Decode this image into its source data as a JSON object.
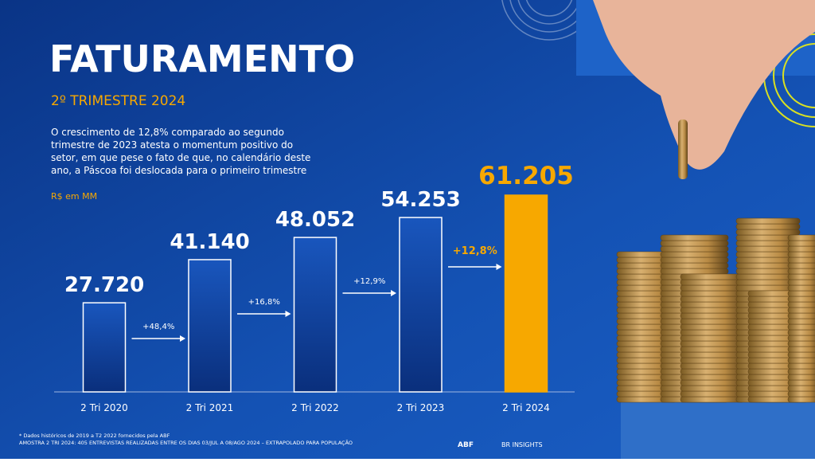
{
  "chart_data": {
    "type": "bar",
    "title": "FATURAMENTO",
    "subtitle": "2º TRIMESTRE 2024",
    "description": [
      "O crescimento de 12,8% comparado ao segundo",
      "trimestre de 2023 atesta o momentum positivo do",
      "setor, em que pese o fato de que, no calendário deste",
      "ano, a Páscoa foi deslocada para o primeiro trimestre"
    ],
    "unit_label": "R$ em MM",
    "categories": [
      "2 Tri 2020",
      "2 Tri 2021",
      "2 Tri 2022",
      "2 Tri 2023",
      "2 Tri 2024"
    ],
    "values": [
      27720,
      41140,
      48052,
      54253,
      61205
    ],
    "value_labels": [
      "27.720",
      "41.140",
      "48.052",
      "54.253",
      "61.205"
    ],
    "colors": [
      "#0e3f95",
      "#0e3f95",
      "#0e3f95",
      "#0e3f95",
      "#f7a800"
    ],
    "growth_labels": [
      "+48,4%",
      "+16,8%",
      "+12,9%",
      "+12,8%"
    ],
    "footnotes": [
      "* Dados históricos de 2019 a T2 2022 fornecidos pela ABF",
      "AMOSTRA 2 TRI 2024: 405 ENTREVISTAS REALIZADAS ENTRE OS DIAS 03/JUL A 08/AGO 2024 – EXTRAPOLADO PARA POPULAÇÃO"
    ],
    "logos": [
      "ABF",
      "BR INSIGHTS"
    ]
  }
}
